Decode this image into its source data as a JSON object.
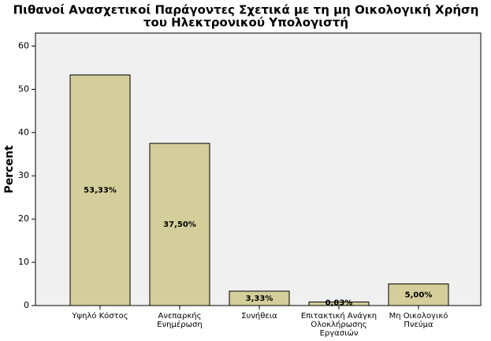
{
  "chart_data": {
    "type": "bar",
    "title": [
      "Πιθανοί Ανασχετικοί Παράγοντες Σχετικά με τη μη Οικολογική Χρήση",
      "του Ηλεκτρονικού Υπολογιστή"
    ],
    "y_label": "Percent",
    "categories": [
      [
        "Υψηλό Κόστος"
      ],
      [
        "Ανεπαρκής",
        "Ενημέρωση"
      ],
      [
        "Συνήθεια"
      ],
      [
        "Επιτακτική Ανάγκη",
        "Ολοκλήρωσης",
        "Εργασιών"
      ],
      [
        "Μη Οικολογικό",
        "Πνεύμα"
      ]
    ],
    "values": [
      53.33,
      37.5,
      3.33,
      0.83,
      5.0
    ],
    "value_labels": [
      "53,33%",
      "37,50%",
      "3,33%",
      "0,83%",
      "5,00%"
    ],
    "color": "#d3ce9a",
    "ylim": [
      0,
      63
    ],
    "yticks": [
      0,
      10,
      20,
      30,
      40,
      50,
      60
    ]
  }
}
